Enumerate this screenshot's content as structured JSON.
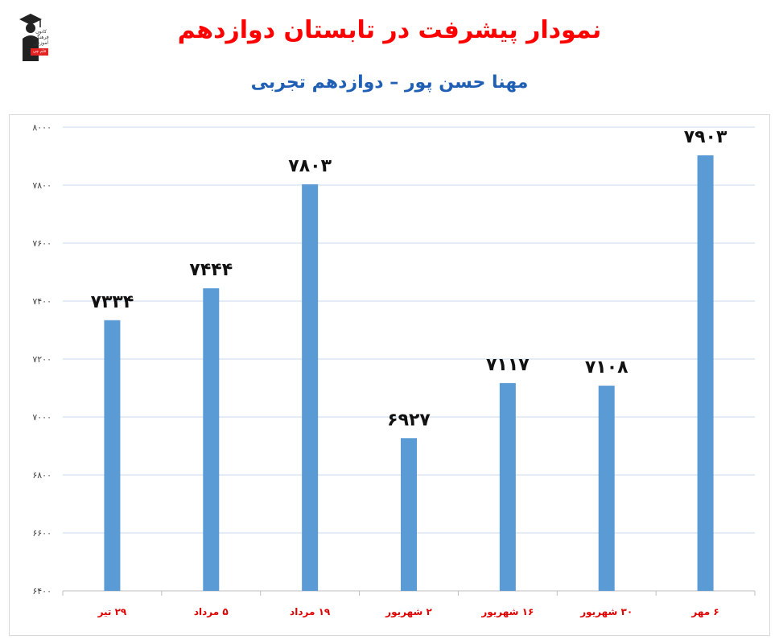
{
  "header": {
    "title": "نمودار پیشرفت در تابستان دوازدهم",
    "subtitle": "مهنا حسن پور – دوازدهم تجربی"
  },
  "logo": {
    "icon": "graduate-icon",
    "text": "کانون فرهنگی آموزش",
    "badge": "قلم چی"
  },
  "colors": {
    "bar": "#5b9bd5",
    "title": "#ff0000",
    "subtitle": "#1f5fb4",
    "category_labels": "#e00000",
    "grid": "#c9d9ee"
  },
  "chart_data": {
    "type": "bar",
    "categories": [
      "۲۹ تیر",
      "۵ مرداد",
      "۱۹ مرداد",
      "۲ شهریور",
      "۱۶ شهریور",
      "۳۰ شهریور",
      "۶ مهر"
    ],
    "values": [
      7334,
      7444,
      7803,
      6927,
      7117,
      7108,
      7903
    ],
    "data_labels": [
      "۷۳۳۴",
      "۷۴۴۴",
      "۷۸۰۳",
      "۶۹۲۷",
      "۷۱۱۷",
      "۷۱۰۸",
      "۷۹۰۳"
    ],
    "ylim": [
      6400,
      8000
    ],
    "yticks": [
      6400,
      6600,
      6800,
      7000,
      7200,
      7400,
      7600,
      7800,
      8000
    ],
    "ytick_labels": [
      "۶۴۰۰",
      "۶۶۰۰",
      "۶۸۰۰",
      "۷۰۰۰",
      "۷۲۰۰",
      "۷۴۰۰",
      "۷۶۰۰",
      "۷۸۰۰",
      "۸۰۰۰"
    ],
    "grid": true,
    "legend": "none"
  }
}
